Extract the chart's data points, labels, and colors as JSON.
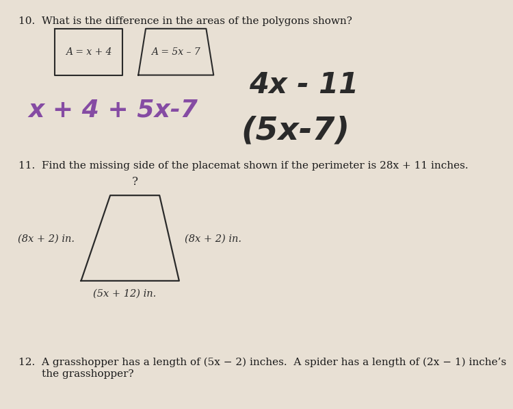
{
  "bg_color": "#e8e0d4",
  "paper_color": "#f2ede6",
  "text_color": "#1a1a1a",
  "q10_text": "10.  What is the difference in the areas of the polygons shown?",
  "q11_text": "11.  Find the missing side of the placemat shown if the perimeter is 28x + 11 inches.",
  "q12_text": "12.  A grasshopper has a length of (5x − 2) inches.  A spider has a length of (2x − 1) inche’s\n       the grasshopper?",
  "rect_label": "A = x + 4",
  "trap1_label": "A = 5x – 7",
  "hw_purple": "x + 4 + 5x-7",
  "hw_black1": "4x - 11",
  "hw_black2": "(5x-7)",
  "q_mark": "?",
  "side_left": "(8x + 2) in.",
  "side_right": "(8x + 2) in.",
  "side_bottom": "(5x + 12) in.",
  "purple_color": "#7a3b9e",
  "ink_color": "#2a2a2a"
}
